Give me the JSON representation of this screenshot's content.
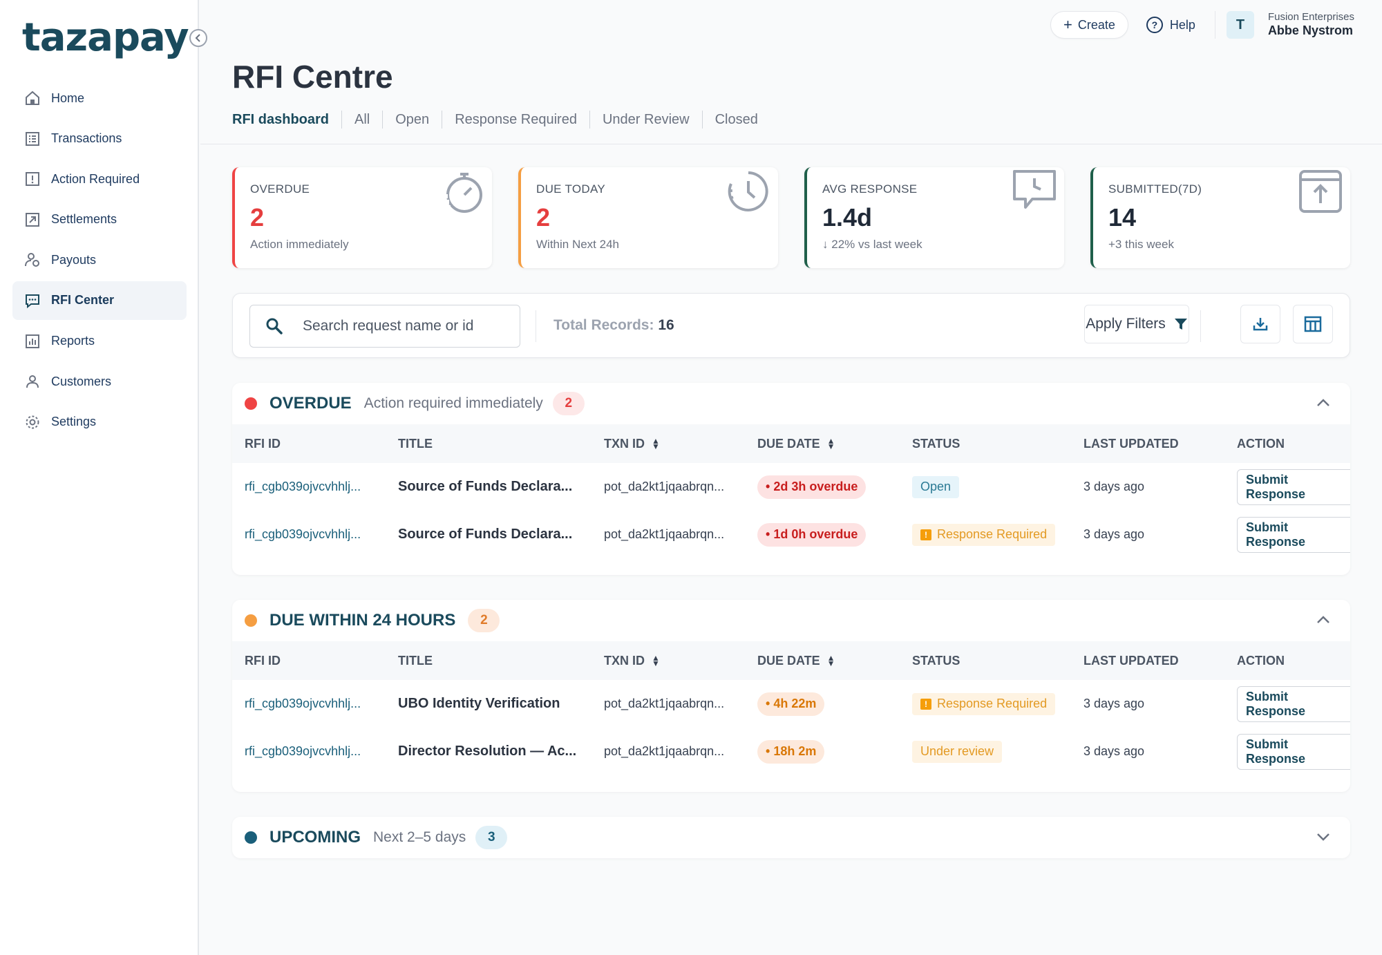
{
  "brand": {
    "logo_text": "tazapay"
  },
  "sidebar": {
    "items": [
      {
        "label": "Home",
        "icon": "home-icon"
      },
      {
        "label": "Transactions",
        "icon": "list-icon"
      },
      {
        "label": "Action Required",
        "icon": "alert-icon"
      },
      {
        "label": "Settlements",
        "icon": "arrow-box-icon"
      },
      {
        "label": "Payouts",
        "icon": "payout-icon"
      },
      {
        "label": "RFI Center",
        "icon": "chat-icon",
        "active": true
      },
      {
        "label": "Reports",
        "icon": "chart-icon"
      },
      {
        "label": "Customers",
        "icon": "user-icon"
      },
      {
        "label": "Settings",
        "icon": "gear-icon"
      }
    ]
  },
  "header": {
    "create_label": "Create",
    "help_label": "Help",
    "avatar_initial": "T",
    "org_name": "Fusion Enterprises",
    "user_name": "Abbe Nystrom"
  },
  "page": {
    "title": "RFI Centre",
    "tabs": [
      "RFI dashboard",
      "All",
      "Open",
      "Response Required",
      "Under Review",
      "Closed"
    ]
  },
  "stats": [
    {
      "label": "OVERDUE",
      "value": "2",
      "sub": "Action immediately",
      "color": "#ef4444",
      "icon": "stopwatch-icon"
    },
    {
      "label": "DUE TODAY",
      "value": "2",
      "sub": "Within Next 24h",
      "color": "#f59e42",
      "icon": "clock-icon"
    },
    {
      "label": "AVG RESPONSE",
      "value": "1.4d",
      "sub": "22% vs last week",
      "color": "#1f5f4a",
      "icon": "chat-clock-icon"
    },
    {
      "label": "SUBMITTED(7D)",
      "value": "14",
      "sub": "+3 this week",
      "color": "#1f5f4a",
      "icon": "upload-box-icon"
    }
  ],
  "toolbar": {
    "search_placeholder": "Search request name or id",
    "total_label": "Total Records:",
    "total_value": "16",
    "apply_filters": "Apply Filters"
  },
  "columns": [
    "RFI ID",
    "TITLE",
    "TXN ID",
    "DUE DATE",
    "STATUS",
    "LAST UPDATED",
    "ACTION"
  ],
  "sections": [
    {
      "title": "OVERDUE",
      "subtitle": "Action required immediately",
      "count": "2",
      "dot_color": "#ef4444",
      "rows": [
        {
          "rfi": "rfi_cgb039ojvcvhhlj...",
          "title": "Source of Funds Declara...",
          "txn": "pot_da2kt1jqaabrqn...",
          "due": "2d 3h overdue",
          "status": "Open",
          "updated": "3 days ago",
          "action": "Submit Response"
        },
        {
          "rfi": "rfi_cgb039ojvcvhhlj...",
          "title": "Source of Funds Declara...",
          "txn": "pot_da2kt1jqaabrqn...",
          "due": "1d 0h overdue",
          "status": "Response Required",
          "updated": "3 days ago",
          "action": "Submit Response"
        }
      ]
    },
    {
      "title": "DUE WITHIN 24 HOURS",
      "subtitle": "",
      "count": "2",
      "dot_color": "#f59e42",
      "rows": [
        {
          "rfi": "rfi_cgb039ojvcvhhlj...",
          "title": "UBO Identity Verification",
          "txn": "pot_da2kt1jqaabrqn...",
          "due": "4h 22m",
          "status": "Response Required",
          "updated": "3 days ago",
          "action": "Submit Response"
        },
        {
          "rfi": "rfi_cgb039ojvcvhhlj...",
          "title": "Director Resolution — Ac...",
          "txn": "pot_da2kt1jqaabrqn...",
          "due": "18h 2m",
          "status": "Under review",
          "updated": "3 days ago",
          "action": "Submit Response"
        }
      ]
    },
    {
      "title": "UPCOMING",
      "subtitle": "Next 2–5 days",
      "count": "3",
      "dot_color": "#1a5f7a"
    }
  ]
}
